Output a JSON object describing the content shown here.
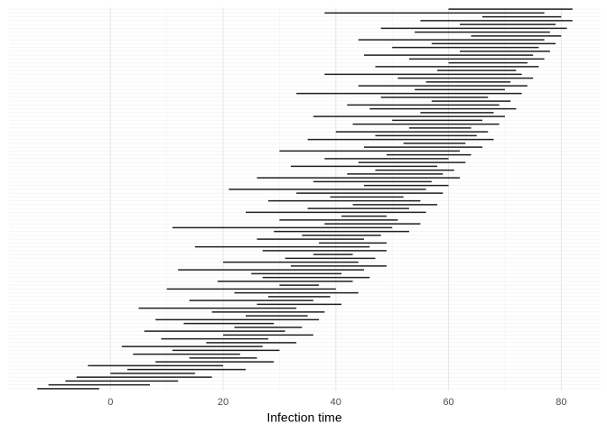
{
  "chart_data": {
    "type": "interval",
    "xlabel": "Infection time",
    "xlim": [
      -18,
      87
    ],
    "xticks": [
      0,
      20,
      40,
      60,
      80
    ],
    "grid": true,
    "color": "#1f1f1f",
    "start": [
      -13,
      -11,
      -8,
      -6,
      0,
      3,
      -4,
      8,
      14,
      4,
      11,
      2,
      17,
      9,
      20,
      6,
      22,
      13,
      8,
      24,
      18,
      5,
      26,
      14,
      28,
      22,
      10,
      30,
      19,
      27,
      25,
      12,
      32,
      20,
      31,
      36,
      27,
      15,
      37,
      26,
      34,
      29,
      11,
      38,
      30,
      41,
      24,
      35,
      43,
      28,
      39,
      33,
      21,
      45,
      36,
      26,
      42,
      47,
      32,
      44,
      38,
      49,
      30,
      45,
      52,
      35,
      47,
      40,
      53,
      43,
      50,
      36,
      55,
      46,
      42,
      57,
      48,
      33,
      54,
      44,
      56,
      51,
      38,
      58,
      47,
      60,
      53,
      45,
      62,
      50,
      57,
      44,
      64,
      54,
      48,
      62,
      55,
      66,
      38,
      60
    ],
    "end": [
      -2,
      7,
      12,
      18,
      15,
      24,
      20,
      29,
      26,
      23,
      30,
      27,
      33,
      28,
      36,
      31,
      34,
      29,
      37,
      35,
      38,
      33,
      41,
      36,
      39,
      44,
      40,
      37,
      43,
      46,
      41,
      45,
      49,
      44,
      47,
      43,
      49,
      46,
      49,
      45,
      48,
      53,
      50,
      55,
      51,
      49,
      56,
      53,
      58,
      55,
      52,
      59,
      56,
      60,
      57,
      62,
      59,
      61,
      58,
      63,
      60,
      64,
      62,
      66,
      63,
      68,
      65,
      67,
      64,
      69,
      66,
      70,
      68,
      72,
      69,
      71,
      67,
      73,
      70,
      74,
      71,
      75,
      73,
      72,
      76,
      74,
      77,
      75,
      78,
      76,
      79,
      77,
      80,
      78,
      81,
      79,
      82,
      80,
      77,
      82
    ]
  }
}
